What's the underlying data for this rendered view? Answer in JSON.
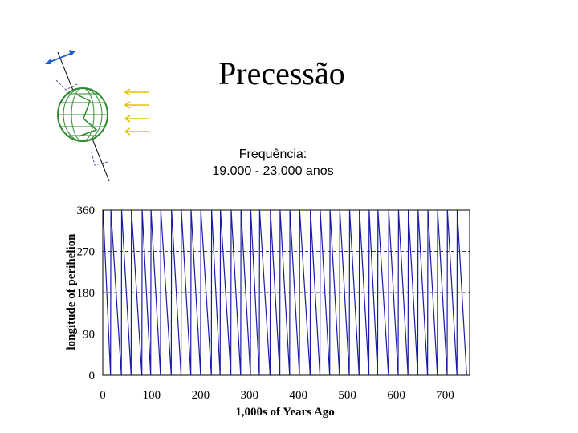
{
  "slide": {
    "title": "Precessão",
    "subtitle_line1": "Frequência:",
    "subtitle_line2": "19.000 - 23.000 anos"
  },
  "colors": {
    "series": "#1a1aa6",
    "globe": "#2e8b2e",
    "sunrays": "#e6c200",
    "axis_arrow": "#1e5bd6"
  },
  "icons": [
    "earth-globe-icon",
    "sun-ray-arrows-icon",
    "precession-arrow-icon"
  ],
  "chart_data": {
    "type": "line",
    "title": "",
    "xlabel": "1,000s of Years Ago",
    "ylabel": "longitude of perihelion",
    "xlim": [
      0,
      750
    ],
    "ylim": [
      0,
      360
    ],
    "xticks": [
      "0",
      "100",
      "200",
      "300",
      "400",
      "500",
      "600",
      "700"
    ],
    "yticks": [
      "0",
      "90",
      "180",
      "270",
      "360"
    ],
    "grid": "horizontal dashed",
    "cycle_length_kyr_range": [
      19,
      23
    ],
    "series": [
      {
        "pattern": "sawtooth",
        "wrap_points_x": [
          0,
          16,
          38,
          58,
          80,
          98,
          118,
          140,
          160,
          180,
          200,
          222,
          240,
          262,
          282,
          302,
          320,
          342,
          362,
          382,
          402,
          424,
          444,
          464,
          484,
          504,
          524,
          544,
          562,
          584,
          604,
          624,
          644,
          664,
          684,
          704,
          724,
          744
        ]
      }
    ]
  }
}
